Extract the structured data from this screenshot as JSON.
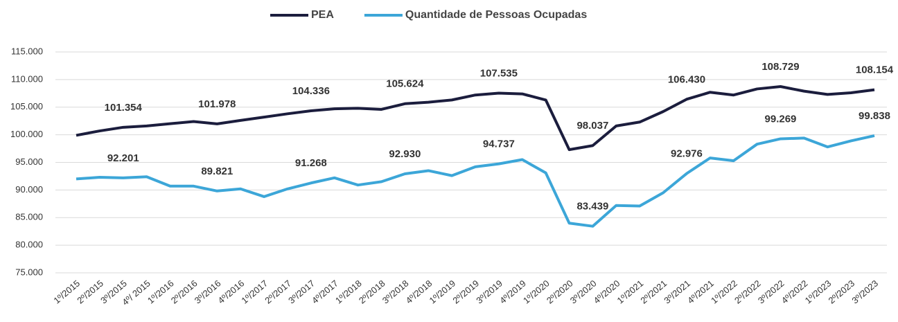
{
  "chart_data": {
    "type": "line",
    "categories": [
      "1º/2015",
      "2º/2015",
      "3º/2015",
      "4º/ 2015",
      "1º/2016",
      "2º/2016",
      "3º/2016",
      "4º/2016",
      "1º/2017",
      "2º/2017",
      "3º/2017",
      "4º/2017",
      "1º/2018",
      "2º/2018",
      "3º/2018",
      "4º/2018",
      "1º/2019",
      "2º/2019",
      "3º/2019",
      "4º/2019",
      "1º/2020",
      "2º/2020",
      "3º/2020",
      "4º/2020",
      "1º/2021",
      "2º/2021",
      "3º/2021",
      "4º/2021",
      "1º/2022",
      "2º/2022",
      "3º/2022",
      "4º/2022",
      "1º/2023",
      "2º/2023",
      "3º/2023"
    ],
    "series": [
      {
        "name": "PEA",
        "color": "#1b1d3d",
        "values": [
          99900,
          100700,
          101354,
          101600,
          102000,
          102400,
          101978,
          102600,
          103200,
          103800,
          104336,
          104700,
          104800,
          104600,
          105624,
          105900,
          106300,
          107200,
          107535,
          107400,
          106300,
          97300,
          98037,
          101600,
          102300,
          104200,
          106430,
          107700,
          107200,
          108300,
          108729,
          107900,
          107300,
          107600,
          108154
        ],
        "value_labels": [
          null,
          null,
          "101.354",
          null,
          null,
          null,
          "101.978",
          null,
          null,
          null,
          "104.336",
          null,
          null,
          null,
          "105.624",
          null,
          null,
          null,
          "107.535",
          null,
          null,
          null,
          "98.037",
          null,
          null,
          null,
          "106.430",
          null,
          null,
          null,
          "108.729",
          null,
          null,
          null,
          "108.154"
        ]
      },
      {
        "name": "Quantidade de Pessoas Ocupadas",
        "color": "#3ca6d8",
        "values": [
          92000,
          92300,
          92201,
          92400,
          90700,
          90700,
          89821,
          90200,
          88800,
          90200,
          91268,
          92200,
          90900,
          91500,
          92930,
          93500,
          92600,
          94200,
          94737,
          95500,
          93100,
          84000,
          83439,
          87200,
          87100,
          89500,
          92976,
          95800,
          95300,
          98300,
          99269,
          99400,
          97800,
          98900,
          99838
        ],
        "value_labels": [
          null,
          null,
          "92.201",
          null,
          null,
          null,
          "89.821",
          null,
          null,
          null,
          "91.268",
          null,
          null,
          null,
          "92.930",
          null,
          null,
          null,
          "94.737",
          null,
          null,
          null,
          "83.439",
          null,
          null,
          null,
          "92.976",
          null,
          null,
          null,
          "99.269",
          null,
          null,
          null,
          "99.838"
        ]
      }
    ],
    "ylim": [
      75000,
      115000
    ],
    "yticks": [
      {
        "value": 75000,
        "label": "75.000"
      },
      {
        "value": 80000,
        "label": "80.000"
      },
      {
        "value": 85000,
        "label": "85.000"
      },
      {
        "value": 90000,
        "label": "90.000"
      },
      {
        "value": 95000,
        "label": "95.000"
      },
      {
        "value": 100000,
        "label": "100.000"
      },
      {
        "value": 105000,
        "label": "105.000"
      },
      {
        "value": 110000,
        "label": "110.000"
      },
      {
        "value": 115000,
        "label": "115.000"
      }
    ],
    "grid": true,
    "legend": "top"
  }
}
